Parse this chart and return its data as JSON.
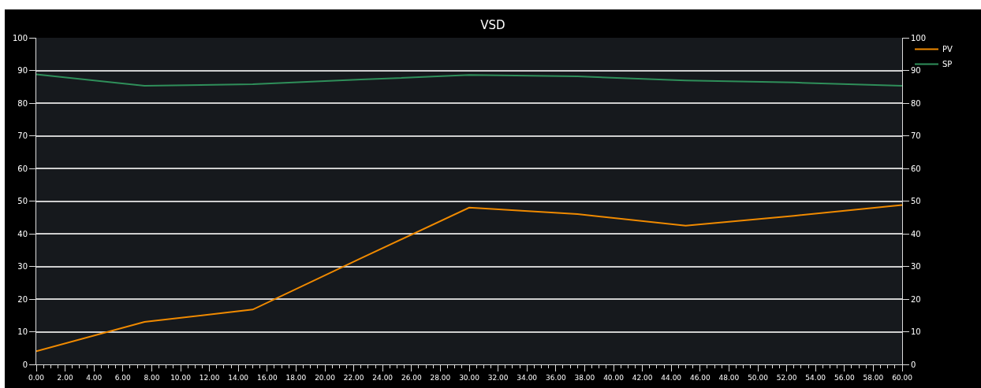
{
  "chart_data": {
    "type": "line",
    "title": "VSD",
    "x": [
      0,
      7.5,
      15,
      22.5,
      30,
      37.5,
      45,
      52.5,
      60
    ],
    "series": [
      {
        "name": "PV",
        "color": "#f08a00",
        "values": [
          4,
          13,
          16.8,
          32.5,
          48,
          46,
          42.5,
          45.5,
          48.8
        ]
      },
      {
        "name": "SP",
        "color": "#2f8f5a",
        "values": [
          88.8,
          85.3,
          85.8,
          87.2,
          88.6,
          88.2,
          86.9,
          86.3,
          85.3
        ]
      }
    ],
    "xlim": [
      0,
      60
    ],
    "xticks": [
      {
        "value": 0,
        "label": "0.00"
      },
      {
        "value": 2,
        "label": "2.00"
      },
      {
        "value": 4,
        "label": "4.00"
      },
      {
        "value": 6,
        "label": "6.00"
      },
      {
        "value": 8,
        "label": "8.00"
      },
      {
        "value": 10,
        "label": "10.00"
      },
      {
        "value": 12,
        "label": "12.00"
      },
      {
        "value": 14,
        "label": "14.00"
      },
      {
        "value": 16,
        "label": "16.00"
      },
      {
        "value": 18,
        "label": "18.00"
      },
      {
        "value": 20,
        "label": "20.00"
      },
      {
        "value": 22,
        "label": "22.00"
      },
      {
        "value": 24,
        "label": "24.00"
      },
      {
        "value": 26,
        "label": "26.00"
      },
      {
        "value": 28,
        "label": "28.00"
      },
      {
        "value": 30,
        "label": "30.00"
      },
      {
        "value": 32,
        "label": "32.00"
      },
      {
        "value": 34,
        "label": "34.00"
      },
      {
        "value": 36,
        "label": "36.00"
      },
      {
        "value": 38,
        "label": "38.00"
      },
      {
        "value": 40,
        "label": "40.00"
      },
      {
        "value": 42,
        "label": "42.00"
      },
      {
        "value": 44,
        "label": "44.00"
      },
      {
        "value": 46,
        "label": "46.00"
      },
      {
        "value": 48,
        "label": "48.00"
      },
      {
        "value": 50,
        "label": "50.00"
      },
      {
        "value": 52,
        "label": "52.00"
      },
      {
        "value": 54,
        "label": "54.00"
      },
      {
        "value": 56,
        "label": "56.00"
      },
      {
        "value": 58,
        "label": "58.00"
      },
      {
        "value": 60,
        "label": "60.00"
      }
    ],
    "ylim": [
      0,
      100
    ],
    "yticks": [
      0,
      10,
      20,
      30,
      40,
      50,
      60,
      70,
      80,
      90,
      100
    ],
    "y2lim": [
      0,
      100
    ],
    "y2ticks": [
      0,
      10,
      20,
      30,
      40,
      50,
      60,
      70,
      80,
      90,
      100
    ],
    "grid": "y",
    "legend": "top right",
    "marker": "none",
    "line_style": "solid"
  }
}
